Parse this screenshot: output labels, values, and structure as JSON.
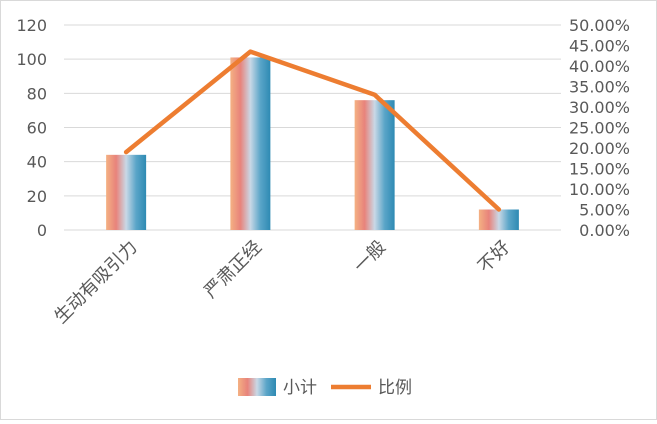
{
  "chart_data": {
    "type": "bar",
    "categories": [
      "生动有吸引力",
      "严肃正经",
      "一般",
      "不好"
    ],
    "series": [
      {
        "name": "小计",
        "type": "bar",
        "axis": "left",
        "values": [
          44,
          101,
          76,
          12
        ]
      },
      {
        "name": "比例",
        "type": "line",
        "axis": "right",
        "values": [
          0.19,
          0.435,
          0.33,
          0.05
        ]
      }
    ],
    "left_axis": {
      "ylim": [
        0,
        120
      ],
      "ticks": [
        "0",
        "20",
        "40",
        "60",
        "80",
        "100",
        "120"
      ]
    },
    "right_axis": {
      "ylim": [
        0,
        0.5
      ],
      "ticks": [
        "0.00%",
        "5.00%",
        "10.00%",
        "15.00%",
        "20.00%",
        "25.00%",
        "30.00%",
        "35.00%",
        "40.00%",
        "45.00%",
        "50.00%"
      ]
    },
    "grid": true,
    "legend": "bottom",
    "colors": {
      "bar_gradient": [
        "#f4b183",
        "#e8837b",
        "#c9d8e6",
        "#5aa5c8",
        "#2e8ab3"
      ],
      "line": "#ed7d31",
      "grid": "#d9d9d9",
      "text": "#595959"
    }
  }
}
